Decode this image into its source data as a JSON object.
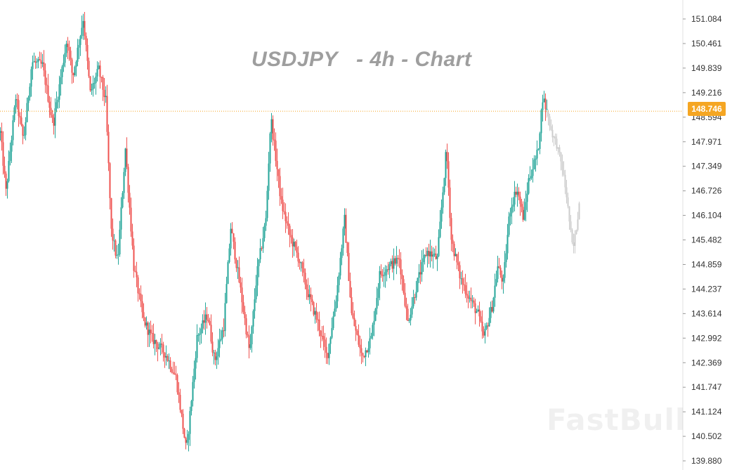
{
  "chart_data": {
    "type": "candlestick",
    "title": "USDJPY   - 4h - Chart",
    "watermark": "FastBull",
    "y_ticks": [
      151.084,
      150.461,
      149.839,
      149.216,
      148.594,
      147.971,
      147.349,
      146.726,
      146.104,
      145.482,
      144.859,
      144.237,
      143.614,
      142.992,
      142.369,
      141.747,
      141.124,
      140.502,
      139.88
    ],
    "y_tick_labels": [
      "151.084",
      "150.461",
      "149.839",
      "149.216",
      "148.594",
      "147.971",
      "147.349",
      "146.726",
      "146.104",
      "145.482",
      "144.859",
      "144.237",
      "143.614",
      "142.992",
      "142.369",
      "141.747",
      "141.124",
      "140.502",
      "139.880"
    ],
    "ylim": [
      139.88,
      151.084
    ],
    "current_price": 148.746,
    "current_price_label": "148.746",
    "colors": {
      "up": "#26a69a",
      "down": "#ef5350",
      "forecast": "#cccccc",
      "price_line": "#f5a623",
      "axis": "#e0e0e0"
    },
    "price_path_anchors": [
      [
        0,
        148.2
      ],
      [
        8,
        146.7
      ],
      [
        22,
        149.1
      ],
      [
        33,
        148.0
      ],
      [
        45,
        150.0
      ],
      [
        60,
        149.9
      ],
      [
        75,
        148.4
      ],
      [
        95,
        150.6
      ],
      [
        103,
        149.6
      ],
      [
        118,
        151.1
      ],
      [
        128,
        149.2
      ],
      [
        140,
        149.8
      ],
      [
        150,
        149.0
      ],
      [
        158,
        145.7
      ],
      [
        167,
        144.9
      ],
      [
        178,
        147.8
      ],
      [
        190,
        144.8
      ],
      [
        203,
        143.5
      ],
      [
        215,
        143.0
      ],
      [
        235,
        142.6
      ],
      [
        250,
        142.0
      ],
      [
        258,
        141.0
      ],
      [
        265,
        140.1
      ],
      [
        280,
        143.0
      ],
      [
        295,
        143.6
      ],
      [
        305,
        142.4
      ],
      [
        318,
        143.3
      ],
      [
        328,
        145.8
      ],
      [
        342,
        144.2
      ],
      [
        355,
        142.6
      ],
      [
        365,
        144.6
      ],
      [
        378,
        146.0
      ],
      [
        385,
        148.6
      ],
      [
        400,
        146.4
      ],
      [
        412,
        145.6
      ],
      [
        425,
        145.0
      ],
      [
        440,
        144.0
      ],
      [
        452,
        143.4
      ],
      [
        465,
        142.5
      ],
      [
        478,
        144.0
      ],
      [
        490,
        146.0
      ],
      [
        500,
        143.6
      ],
      [
        515,
        142.5
      ],
      [
        528,
        143.0
      ],
      [
        540,
        144.6
      ],
      [
        552,
        144.8
      ],
      [
        568,
        145.0
      ],
      [
        580,
        143.4
      ],
      [
        595,
        144.5
      ],
      [
        607,
        145.2
      ],
      [
        622,
        145.0
      ],
      [
        635,
        147.8
      ],
      [
        642,
        145.5
      ],
      [
        655,
        144.5
      ],
      [
        668,
        144.0
      ],
      [
        680,
        143.6
      ],
      [
        688,
        143.0
      ],
      [
        700,
        143.8
      ],
      [
        708,
        144.8
      ],
      [
        716,
        144.4
      ],
      [
        725,
        146.2
      ],
      [
        735,
        146.8
      ],
      [
        745,
        146.0
      ],
      [
        752,
        147.0
      ],
      [
        765,
        147.7
      ],
      [
        772,
        149.1
      ],
      [
        778,
        148.75
      ]
    ],
    "forecast_path_anchors": [
      [
        778,
        148.75
      ],
      [
        785,
        148.2
      ],
      [
        792,
        147.9
      ],
      [
        800,
        147.3
      ],
      [
        806,
        146.6
      ],
      [
        811,
        145.8
      ],
      [
        815,
        145.2
      ],
      [
        820,
        145.8
      ],
      [
        824,
        146.4
      ]
    ]
  }
}
